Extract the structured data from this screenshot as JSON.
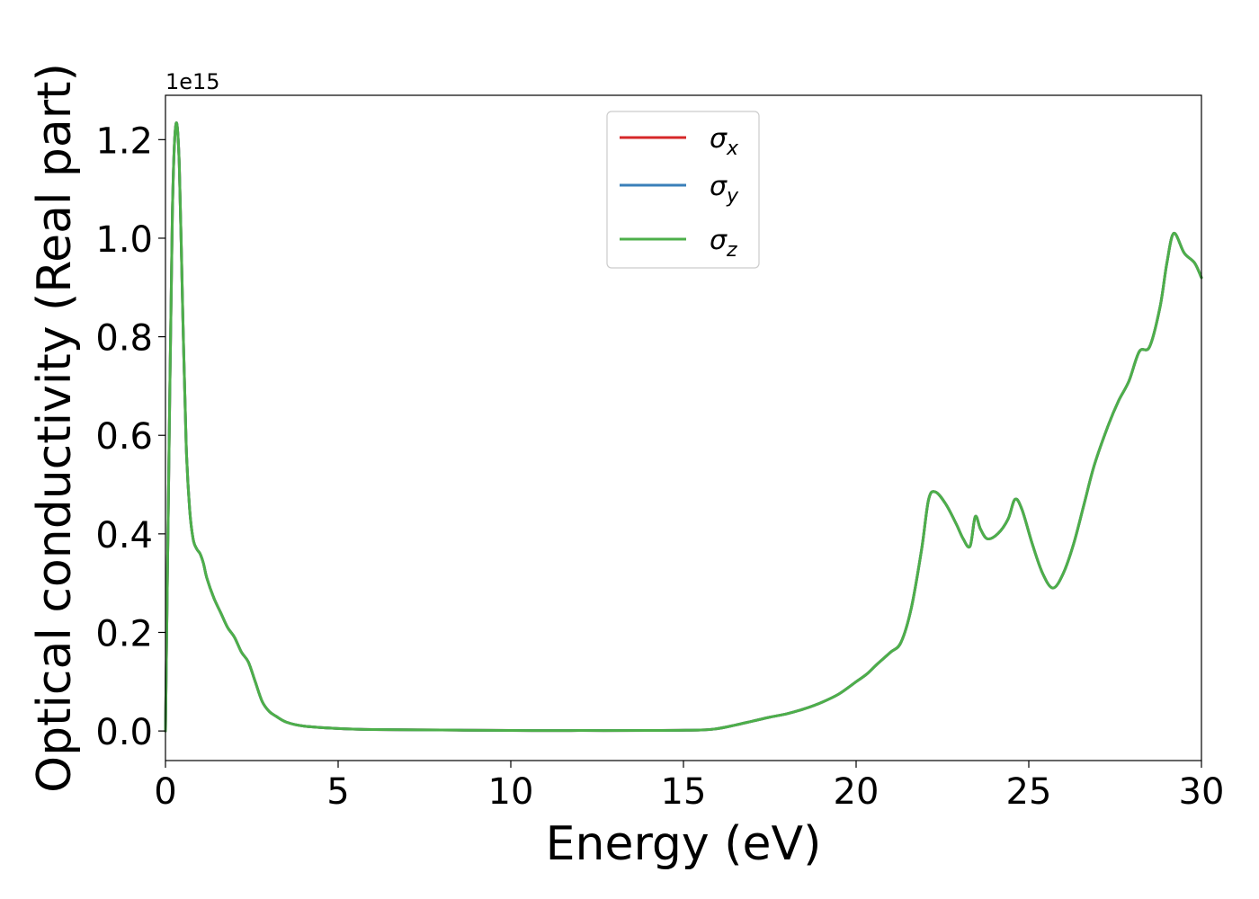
{
  "chart_data": {
    "type": "line",
    "xlabel": "Energy (eV)",
    "ylabel": "Optical conductivity (Real part)",
    "y_offset_label": "1e15",
    "xlim": [
      0,
      30
    ],
    "ylim": [
      -0.06,
      1.29
    ],
    "xticks": [
      0,
      5,
      10,
      15,
      20,
      25,
      30
    ],
    "xtick_labels": [
      "0",
      "5",
      "10",
      "15",
      "20",
      "25",
      "30"
    ],
    "yticks": [
      0.0,
      0.2,
      0.4,
      0.6,
      0.8,
      1.0,
      1.2
    ],
    "ytick_labels": [
      "0.0",
      "0.2",
      "0.4",
      "0.6",
      "0.8",
      "1.0",
      "1.2"
    ],
    "grid": false,
    "legend_position": "top-center",
    "series": [
      {
        "name": "σx",
        "symbol": "σ",
        "subscript": "x",
        "color": "#d62728",
        "x": [
          0,
          0.1,
          0.2,
          0.3,
          0.4,
          0.5,
          0.6,
          0.7,
          0.8,
          0.9,
          1.0,
          1.1,
          1.2,
          1.4,
          1.6,
          1.8,
          2.0,
          2.2,
          2.4,
          2.6,
          2.8,
          3.0,
          3.2,
          3.5,
          4.0,
          5.0,
          6.0,
          8.0,
          10.0,
          12.0,
          14.0,
          15.5,
          16.0,
          16.5,
          17.0,
          17.5,
          18.0,
          18.5,
          19.0,
          19.5,
          20.0,
          20.3,
          20.6,
          21.0,
          21.3,
          21.6,
          21.9,
          22.1,
          22.3,
          22.6,
          22.9,
          23.1,
          23.3,
          23.45,
          23.6,
          23.8,
          24.1,
          24.4,
          24.6,
          24.8,
          25.1,
          25.4,
          25.7,
          26.0,
          26.3,
          26.6,
          26.9,
          27.3,
          27.6,
          27.9,
          28.2,
          28.5,
          28.8,
          29.0,
          29.2,
          29.5,
          29.8,
          30.0
        ],
        "y": [
          0.0,
          0.55,
          1.05,
          1.23,
          1.15,
          0.85,
          0.58,
          0.45,
          0.39,
          0.37,
          0.36,
          0.34,
          0.31,
          0.27,
          0.24,
          0.21,
          0.19,
          0.16,
          0.14,
          0.1,
          0.06,
          0.04,
          0.03,
          0.018,
          0.01,
          0.005,
          0.003,
          0.002,
          0.001,
          0.001,
          0.001,
          0.002,
          0.005,
          0.012,
          0.02,
          0.028,
          0.035,
          0.045,
          0.058,
          0.075,
          0.1,
          0.115,
          0.135,
          0.16,
          0.18,
          0.25,
          0.37,
          0.47,
          0.485,
          0.46,
          0.42,
          0.39,
          0.375,
          0.435,
          0.41,
          0.39,
          0.4,
          0.43,
          0.47,
          0.45,
          0.38,
          0.32,
          0.29,
          0.32,
          0.38,
          0.46,
          0.54,
          0.62,
          0.67,
          0.71,
          0.77,
          0.78,
          0.86,
          0.95,
          1.01,
          0.97,
          0.95,
          0.92
        ]
      },
      {
        "name": "σy",
        "symbol": "σ",
        "subscript": "y",
        "color": "#3a7fb9",
        "x": [
          0,
          0.1,
          0.2,
          0.3,
          0.4,
          0.5,
          0.6,
          0.7,
          0.8,
          0.9,
          1.0,
          1.1,
          1.2,
          1.4,
          1.6,
          1.8,
          2.0,
          2.2,
          2.4,
          2.6,
          2.8,
          3.0,
          3.2,
          3.5,
          4.0,
          5.0,
          6.0,
          8.0,
          10.0,
          12.0,
          14.0,
          15.5,
          16.0,
          16.5,
          17.0,
          17.5,
          18.0,
          18.5,
          19.0,
          19.5,
          20.0,
          20.3,
          20.6,
          21.0,
          21.3,
          21.6,
          21.9,
          22.1,
          22.3,
          22.6,
          22.9,
          23.1,
          23.3,
          23.45,
          23.6,
          23.8,
          24.1,
          24.4,
          24.6,
          24.8,
          25.1,
          25.4,
          25.7,
          26.0,
          26.3,
          26.6,
          26.9,
          27.3,
          27.6,
          27.9,
          28.2,
          28.5,
          28.8,
          29.0,
          29.2,
          29.5,
          29.8,
          30.0
        ],
        "y": [
          0.0,
          0.55,
          1.05,
          1.23,
          1.15,
          0.85,
          0.58,
          0.45,
          0.39,
          0.37,
          0.36,
          0.34,
          0.31,
          0.27,
          0.24,
          0.21,
          0.19,
          0.16,
          0.14,
          0.1,
          0.06,
          0.04,
          0.03,
          0.018,
          0.01,
          0.005,
          0.003,
          0.002,
          0.001,
          0.001,
          0.001,
          0.002,
          0.005,
          0.012,
          0.02,
          0.028,
          0.035,
          0.045,
          0.058,
          0.075,
          0.1,
          0.115,
          0.135,
          0.16,
          0.18,
          0.25,
          0.37,
          0.47,
          0.485,
          0.46,
          0.42,
          0.39,
          0.375,
          0.435,
          0.41,
          0.39,
          0.4,
          0.43,
          0.47,
          0.45,
          0.38,
          0.32,
          0.29,
          0.32,
          0.38,
          0.46,
          0.54,
          0.62,
          0.67,
          0.71,
          0.77,
          0.78,
          0.86,
          0.95,
          1.01,
          0.97,
          0.95,
          0.92
        ]
      },
      {
        "name": "σz",
        "symbol": "σ",
        "subscript": "z",
        "color": "#4daf4a",
        "x": [
          0,
          0.1,
          0.2,
          0.3,
          0.4,
          0.5,
          0.6,
          0.7,
          0.8,
          0.9,
          1.0,
          1.1,
          1.2,
          1.4,
          1.6,
          1.8,
          2.0,
          2.2,
          2.4,
          2.6,
          2.8,
          3.0,
          3.2,
          3.5,
          4.0,
          5.0,
          6.0,
          8.0,
          10.0,
          12.0,
          14.0,
          15.5,
          16.0,
          16.5,
          17.0,
          17.5,
          18.0,
          18.5,
          19.0,
          19.5,
          20.0,
          20.3,
          20.6,
          21.0,
          21.3,
          21.6,
          21.9,
          22.1,
          22.3,
          22.6,
          22.9,
          23.1,
          23.3,
          23.45,
          23.6,
          23.8,
          24.1,
          24.4,
          24.6,
          24.8,
          25.1,
          25.4,
          25.7,
          26.0,
          26.3,
          26.6,
          26.9,
          27.3,
          27.6,
          27.9,
          28.2,
          28.5,
          28.8,
          29.0,
          29.2,
          29.5,
          29.8,
          30.0
        ],
        "y": [
          0.0,
          0.55,
          1.05,
          1.23,
          1.15,
          0.85,
          0.58,
          0.45,
          0.39,
          0.37,
          0.36,
          0.34,
          0.31,
          0.27,
          0.24,
          0.21,
          0.19,
          0.16,
          0.14,
          0.1,
          0.06,
          0.04,
          0.03,
          0.018,
          0.01,
          0.005,
          0.003,
          0.002,
          0.001,
          0.001,
          0.001,
          0.002,
          0.005,
          0.012,
          0.02,
          0.028,
          0.035,
          0.045,
          0.058,
          0.075,
          0.1,
          0.115,
          0.135,
          0.16,
          0.18,
          0.25,
          0.37,
          0.47,
          0.485,
          0.46,
          0.42,
          0.39,
          0.375,
          0.435,
          0.41,
          0.39,
          0.4,
          0.43,
          0.47,
          0.45,
          0.38,
          0.32,
          0.29,
          0.32,
          0.38,
          0.46,
          0.54,
          0.62,
          0.67,
          0.71,
          0.77,
          0.78,
          0.86,
          0.95,
          1.01,
          0.97,
          0.95,
          0.92
        ]
      }
    ]
  }
}
